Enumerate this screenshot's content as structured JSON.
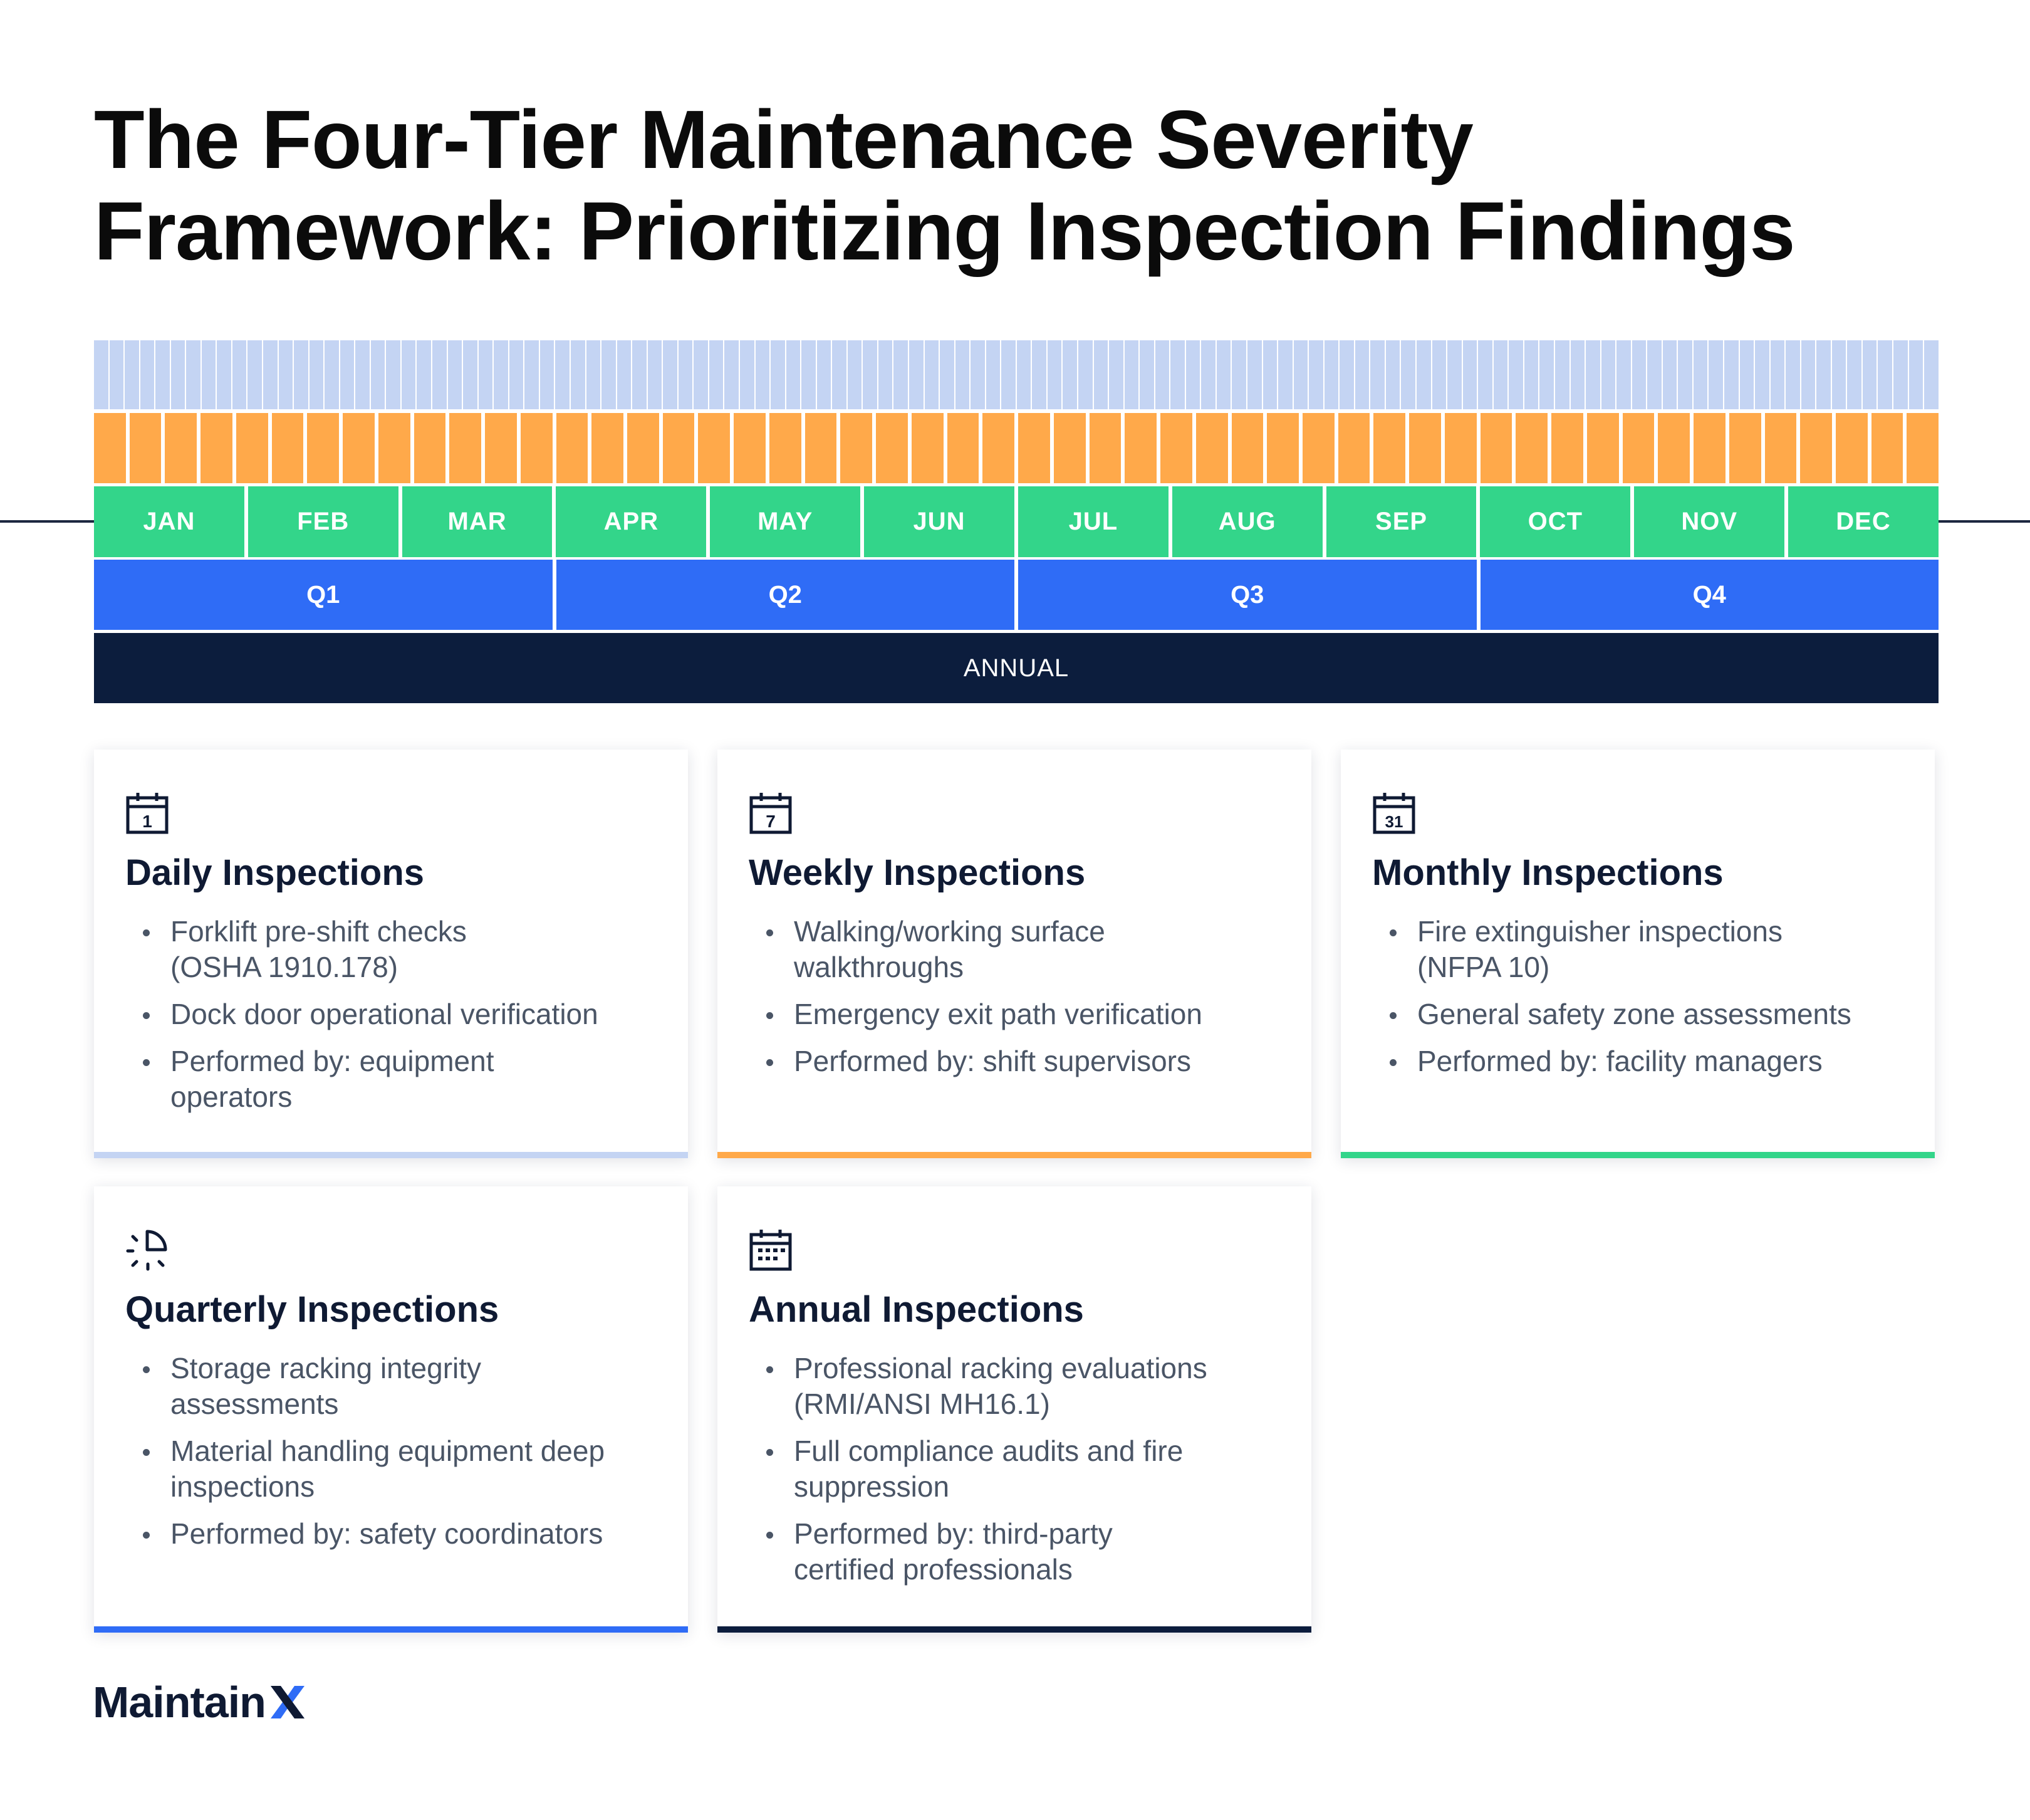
{
  "title": {
    "line1": "The Four-Tier Maintenance Severity",
    "line2": "Framework: Prioritizing Inspection Findings"
  },
  "timeline": {
    "day_cells": 120,
    "week_cells": 52,
    "months": [
      "JAN",
      "FEB",
      "MAR",
      "APR",
      "MAY",
      "JUN",
      "JUL",
      "AUG",
      "SEP",
      "OCT",
      "NOV",
      "DEC"
    ],
    "quarters": [
      "Q1",
      "Q2",
      "Q3",
      "Q4"
    ],
    "annual": "ANNUAL",
    "colors": {
      "daily": "#c4d4f3",
      "weekly": "#ffa94a",
      "monthly": "#33d58a",
      "quarterly": "#2f6cf6",
      "annual": "#0c1d3d"
    }
  },
  "cards": {
    "daily": {
      "icon": "calendar-1-icon",
      "title": "Daily Inspections",
      "items": [
        "Forklift pre-shift checks (OSHA 1910.178)",
        "Dock door operational verification",
        "Performed by: equipment operators"
      ]
    },
    "weekly": {
      "icon": "calendar-7-icon",
      "title": "Weekly Inspections",
      "items": [
        "Walking/working surface walkthroughs",
        "Emergency exit path verification",
        "Performed by: shift supervisors"
      ]
    },
    "monthly": {
      "icon": "calendar-31-icon",
      "title": "Monthly Inspections",
      "items": [
        "Fire extinguisher inspections (NFPA 10)",
        "General safety zone assessments",
        "Performed by: facility managers"
      ]
    },
    "quarterly": {
      "icon": "quarter-pie-icon",
      "title": "Quarterly Inspections",
      "items": [
        "Storage racking integrity assessments",
        "Material handling equipment deep inspections",
        "Performed by: safety coordinators"
      ]
    },
    "annual": {
      "icon": "calendar-grid-icon",
      "title": "Annual Inspections",
      "items": [
        "Professional racking evaluations (RMI/ANSI MH16.1)",
        "Full compliance audits and fire suppression",
        "Performed by: third-party certified professionals"
      ]
    }
  },
  "logo": {
    "text": "Maintain",
    "accent": "#2f6cf6"
  }
}
